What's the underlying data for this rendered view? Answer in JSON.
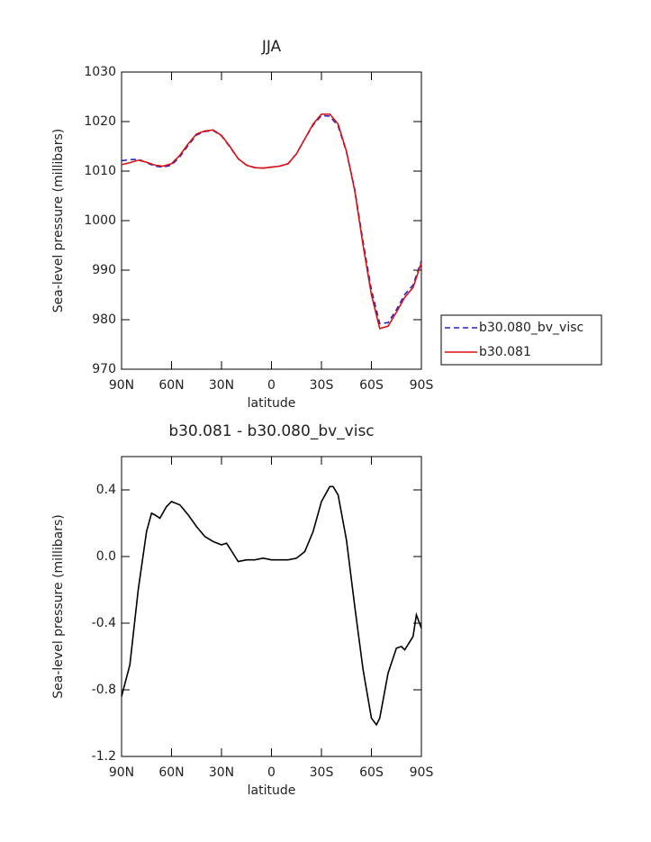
{
  "chart_data": [
    {
      "type": "line",
      "title": "JJA",
      "xlabel": "latitude",
      "ylabel": "Sea-level pressure (millibars)",
      "x": [
        90,
        85,
        80,
        75,
        70,
        65,
        60,
        55,
        50,
        45,
        40,
        35,
        30,
        25,
        20,
        15,
        10,
        5,
        0,
        -5,
        -10,
        -15,
        -20,
        -25,
        -30,
        -35,
        -40,
        -45,
        -50,
        -55,
        -60,
        -65,
        -70,
        -75,
        -80,
        -85,
        -90
      ],
      "series": [
        {
          "name": "b30.080_bv_visc",
          "color": "#2222cc",
          "linestyle": "dashed",
          "values": [
            1012.1,
            1012.3,
            1012.4,
            1011.7,
            1011.0,
            1010.8,
            1011.2,
            1012.9,
            1015.2,
            1017.3,
            1018.0,
            1018.2,
            1017.1,
            1014.9,
            1012.5,
            1011.2,
            1010.7,
            1010.6,
            1010.8,
            1011.0,
            1011.5,
            1013.5,
            1016.5,
            1019.3,
            1021.2,
            1021.1,
            1019.1,
            1013.9,
            1006.3,
            995.7,
            986.0,
            979.2,
            979.4,
            982.0,
            985.1,
            987.0,
            991.9
          ]
        },
        {
          "name": "b30.081",
          "color": "#dd1111",
          "linestyle": "solid",
          "values": [
            1011.3,
            1011.7,
            1012.2,
            1011.8,
            1011.2,
            1011.0,
            1011.5,
            1013.2,
            1015.5,
            1017.5,
            1018.1,
            1018.3,
            1017.2,
            1015.0,
            1012.5,
            1011.2,
            1010.7,
            1010.6,
            1010.8,
            1011.0,
            1011.5,
            1013.5,
            1016.5,
            1019.5,
            1021.5,
            1021.5,
            1019.5,
            1014.0,
            1006.0,
            995.0,
            985.0,
            978.2,
            978.7,
            981.5,
            984.5,
            986.5,
            991.5
          ]
        }
      ],
      "xlim": [
        90,
        -90
      ],
      "xticks": [
        {
          "value": 90,
          "label": "90N"
        },
        {
          "value": 60,
          "label": "60N"
        },
        {
          "value": 30,
          "label": "30N"
        },
        0,
        {
          "value": -30,
          "label": "30S"
        },
        {
          "value": -60,
          "label": "60S"
        },
        {
          "value": -90,
          "label": "90S"
        }
      ],
      "ylim": [
        970,
        1030
      ],
      "yticks": [
        970,
        980,
        990,
        1000,
        1010,
        1020,
        1030
      ],
      "legend": "right"
    },
    {
      "type": "line",
      "title": "b30.081 - b30.080_bv_visc",
      "xlabel": "latitude",
      "ylabel": "Sea-level pressure (millibars)",
      "x": [
        90,
        85,
        80,
        75,
        72,
        70,
        67,
        63,
        60,
        55,
        50,
        45,
        40,
        35,
        30,
        27,
        25,
        20,
        15,
        10,
        5,
        0,
        -5,
        -10,
        -15,
        -20,
        -25,
        -30,
        -35,
        -37,
        -40,
        -45,
        -50,
        -55,
        -60,
        -63,
        -65,
        -70,
        -75,
        -78,
        -80,
        -85,
        -87,
        -90
      ],
      "series": [
        {
          "name": "b30.081 - b30.080_bv_visc",
          "color": "#000000",
          "linestyle": "solid",
          "values": [
            -0.84,
            -0.65,
            -0.2,
            0.15,
            0.26,
            0.25,
            0.23,
            0.3,
            0.33,
            0.31,
            0.25,
            0.18,
            0.12,
            0.09,
            0.07,
            0.08,
            0.05,
            -0.03,
            -0.02,
            -0.02,
            -0.01,
            -0.02,
            -0.02,
            -0.02,
            -0.01,
            0.03,
            0.15,
            0.33,
            0.42,
            0.42,
            0.37,
            0.1,
            -0.3,
            -0.68,
            -0.97,
            -1.01,
            -0.97,
            -0.7,
            -0.55,
            -0.54,
            -0.56,
            -0.48,
            -0.35,
            -0.43
          ]
        }
      ],
      "xlim": [
        90,
        -90
      ],
      "xticks": [
        {
          "value": 90,
          "label": "90N"
        },
        {
          "value": 60,
          "label": "60N"
        },
        {
          "value": 30,
          "label": "30N"
        },
        0,
        {
          "value": -30,
          "label": "30S"
        },
        {
          "value": -60,
          "label": "60S"
        },
        {
          "value": -90,
          "label": "90S"
        }
      ],
      "ylim": [
        -1.2,
        0.6
      ],
      "yticks": [
        {
          "value": -1.2,
          "label": "-1.2"
        },
        {
          "value": -0.8,
          "label": "-0.8"
        },
        {
          "value": -0.4,
          "label": "-0.4"
        },
        {
          "value": 0,
          "label": "0.0"
        },
        {
          "value": 0.4,
          "label": "0.4"
        }
      ]
    }
  ]
}
